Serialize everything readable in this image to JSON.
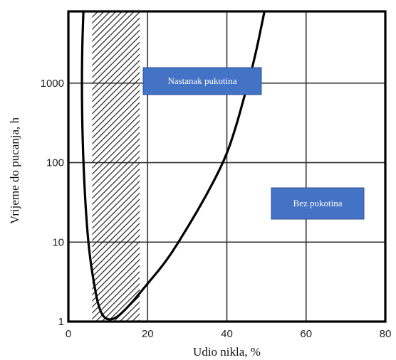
{
  "chart_data": {
    "type": "line",
    "xlabel": "Udio nikla, %",
    "ylabel": "Vrijeme do pucanja, h",
    "xlim": [
      0,
      80
    ],
    "ylim": [
      1,
      8000
    ],
    "y_scale": "log",
    "x_ticks": [
      0,
      20,
      40,
      60,
      80
    ],
    "x_tick_labels": [
      "0",
      "20",
      "40",
      "60",
      "80"
    ],
    "y_ticks": [
      1,
      10,
      100,
      1000
    ],
    "y_tick_labels": [
      "1",
      "10",
      "100",
      "1000"
    ],
    "grid": true,
    "series": [
      {
        "x": [
          3.8,
          3.5,
          3.4,
          3.5,
          3.8,
          4.3,
          5.0,
          6.0,
          8.0,
          11.0,
          15.0,
          20.0,
          25.0,
          30.0,
          35.0,
          39.5,
          42.0,
          44.5,
          47.0,
          49.5
        ],
        "y": [
          8000,
          3000,
          1000,
          300,
          100,
          30,
          10,
          4,
          1.2,
          1.0,
          1.5,
          3.0,
          6.0,
          15.0,
          40.0,
          110.0,
          250.0,
          700.0,
          2000.0,
          8000.0
        ]
      }
    ],
    "shaded_region": {
      "x_from": 6,
      "x_to": 18,
      "pattern": "diagonal-hatch"
    },
    "annotations": [
      {
        "text": "Nastanak pukotina",
        "color": "#4472c4"
      },
      {
        "text": "Bez pukotina",
        "color": "#4472c4"
      }
    ]
  }
}
